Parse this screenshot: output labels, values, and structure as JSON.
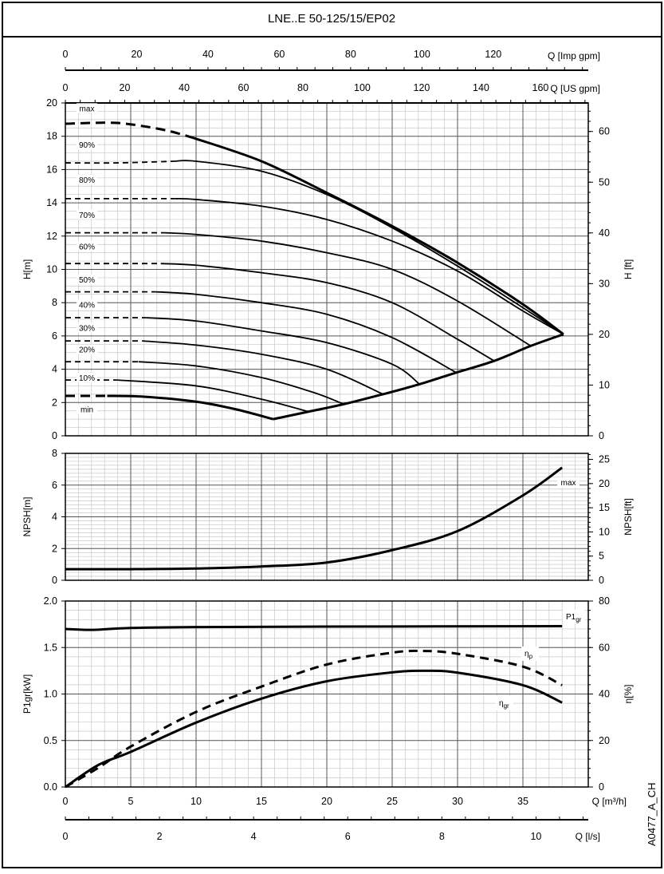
{
  "title": "LNE..E 50-125/15/EP02",
  "code": "A0477_A_CH",
  "chart_data": {
    "type": "line",
    "x_axes": {
      "imp_gpm": {
        "label": "Q [Imp gpm]",
        "ticks": [
          "0",
          "20",
          "40",
          "60",
          "80",
          "100",
          "120"
        ]
      },
      "us_gpm": {
        "label": "Q [US gpm]",
        "ticks": [
          "0",
          "20",
          "40",
          "60",
          "80",
          "100",
          "120",
          "140",
          "160"
        ]
      },
      "m3h": {
        "label": "Q [m³/h]",
        "ticks": [
          "0",
          "5",
          "10",
          "15",
          "20",
          "25",
          "30",
          "35"
        ],
        "range": [
          0,
          40
        ]
      },
      "ls": {
        "label": "Q [l/s]",
        "ticks": [
          "0",
          "2",
          "4",
          "6",
          "8",
          "10"
        ]
      }
    },
    "head": {
      "ylabel": "H[m]",
      "ylabel_right": "H [ft]",
      "ylim": [
        0,
        20
      ],
      "yticks": [
        "0",
        "2",
        "4",
        "6",
        "8",
        "10",
        "12",
        "14",
        "16",
        "18",
        "20"
      ],
      "yticks_right": [
        "0",
        "10",
        "20",
        "30",
        "40",
        "50",
        "60"
      ],
      "curves": [
        {
          "name": "max",
          "dashed": [
            [
              0,
              18.75
            ],
            [
              2,
              18.8
            ],
            [
              4,
              18.8
            ],
            [
              6,
              18.6
            ],
            [
              8,
              18.3
            ],
            [
              9.8,
              17.9
            ]
          ],
          "solid": [
            [
              9.8,
              17.9
            ],
            [
              15,
              16.5
            ],
            [
              20,
              14.6
            ],
            [
              25,
              12.6
            ],
            [
              30,
              10.4
            ],
            [
              35,
              7.9
            ],
            [
              38.1,
              6.1
            ]
          ]
        },
        {
          "name": "90%",
          "dashed": [
            [
              0,
              16.4
            ],
            [
              4,
              16.4
            ],
            [
              8.4,
              16.5
            ]
          ],
          "solid": [
            [
              8.4,
              16.5
            ],
            [
              10,
              16.5
            ],
            [
              15,
              15.9
            ],
            [
              20,
              14.5
            ],
            [
              25,
              12.5
            ],
            [
              30,
              10.2
            ],
            [
              35,
              7.7
            ],
            [
              38.1,
              6.1
            ]
          ]
        },
        {
          "name": "80%",
          "dashed": [
            [
              0,
              14.25
            ],
            [
              8.4,
              14.25
            ]
          ],
          "solid": [
            [
              8.4,
              14.25
            ],
            [
              10,
              14.2
            ],
            [
              15,
              13.8
            ],
            [
              20,
              13.0
            ],
            [
              25,
              11.7
            ],
            [
              30,
              9.9
            ],
            [
              35,
              7.5
            ],
            [
              38.1,
              6.1
            ]
          ]
        },
        {
          "name": "70%",
          "dashed": [
            [
              0,
              12.2
            ],
            [
              7.6,
              12.2
            ]
          ],
          "solid": [
            [
              7.6,
              12.2
            ],
            [
              10,
              12.1
            ],
            [
              15,
              11.7
            ],
            [
              20,
              11.0
            ],
            [
              25,
              10.0
            ],
            [
              30,
              8.1
            ],
            [
              35.6,
              5.4
            ]
          ]
        },
        {
          "name": "60%",
          "dashed": [
            [
              0,
              10.35
            ],
            [
              7.3,
              10.35
            ]
          ],
          "solid": [
            [
              7.3,
              10.35
            ],
            [
              10,
              10.25
            ],
            [
              15,
              9.8
            ],
            [
              20,
              9.2
            ],
            [
              25,
              8.0
            ],
            [
              30,
              5.8
            ],
            [
              32.8,
              4.5
            ]
          ]
        },
        {
          "name": "50%",
          "dashed": [
            [
              0,
              8.65
            ],
            [
              6.9,
              8.65
            ]
          ],
          "solid": [
            [
              6.9,
              8.65
            ],
            [
              10,
              8.5
            ],
            [
              15,
              8.0
            ],
            [
              20,
              7.3
            ],
            [
              25,
              5.9
            ],
            [
              29.9,
              3.8
            ]
          ]
        },
        {
          "name": "40%",
          "dashed": [
            [
              0,
              7.1
            ],
            [
              6.2,
              7.1
            ]
          ],
          "solid": [
            [
              6.2,
              7.1
            ],
            [
              10,
              6.9
            ],
            [
              15,
              6.3
            ],
            [
              20,
              5.6
            ],
            [
              25,
              4.3
            ],
            [
              27.1,
              3.1
            ]
          ]
        },
        {
          "name": "30%",
          "dashed": [
            [
              0,
              5.7
            ],
            [
              5.9,
              5.7
            ]
          ],
          "solid": [
            [
              5.9,
              5.7
            ],
            [
              10,
              5.45
            ],
            [
              15,
              4.9
            ],
            [
              20,
              4.0
            ],
            [
              24.3,
              2.5
            ]
          ]
        },
        {
          "name": "20%",
          "dashed": [
            [
              0,
              4.45
            ],
            [
              5.6,
              4.45
            ]
          ],
          "solid": [
            [
              5.6,
              4.45
            ],
            [
              10,
              4.2
            ],
            [
              15,
              3.5
            ],
            [
              19,
              2.6
            ],
            [
              21.3,
              1.9
            ]
          ]
        },
        {
          "name": "10%",
          "dashed": [
            [
              0,
              3.35
            ],
            [
              4.0,
              3.35
            ]
          ],
          "solid": [
            [
              4,
              3.35
            ],
            [
              10,
              3.0
            ],
            [
              15,
              2.2
            ],
            [
              18.6,
              1.45
            ]
          ]
        },
        {
          "name": "min",
          "dashed": [
            [
              0,
              2.4
            ],
            [
              3.2,
              2.4
            ]
          ],
          "solid": [
            [
              3.2,
              2.4
            ],
            [
              6,
              2.35
            ],
            [
              10,
              2.05
            ],
            [
              13,
              1.6
            ],
            [
              15.9,
              1.0
            ]
          ]
        }
      ],
      "min_efficiency_boundary": [
        [
          15.9,
          1.0
        ],
        [
          18.6,
          1.45
        ],
        [
          21.3,
          1.9
        ],
        [
          24.3,
          2.5
        ],
        [
          27.1,
          3.1
        ],
        [
          29.9,
          3.8
        ],
        [
          32.8,
          4.5
        ],
        [
          35.6,
          5.4
        ],
        [
          38.1,
          6.1
        ]
      ]
    },
    "npsh": {
      "ylabel": "NPSH[m]",
      "ylabel_right": "NPSH[ft]",
      "ylim": [
        0,
        8
      ],
      "yticks": [
        "0",
        "2",
        "4",
        "6",
        "8"
      ],
      "yticks_right": [
        "0",
        "5",
        "10",
        "15",
        "20",
        "25"
      ],
      "series": [
        {
          "name": "max",
          "points": [
            [
              0,
              0.7
            ],
            [
              5,
              0.7
            ],
            [
              10,
              0.74
            ],
            [
              15,
              0.87
            ],
            [
              20,
              1.12
            ],
            [
              25,
              1.9
            ],
            [
              30,
              3.1
            ],
            [
              35,
              5.35
            ],
            [
              38,
              7.1
            ]
          ]
        }
      ]
    },
    "power": {
      "ylabel": "P1gr[kW]",
      "ylabel_right": "η[%]",
      "ylim": [
        0,
        2.0
      ],
      "ylim_right": [
        0,
        80
      ],
      "yticks": [
        "0.0",
        "0.5",
        "1.0",
        "1.5",
        "2.0"
      ],
      "yticks_right": [
        "0",
        "20",
        "40",
        "60",
        "80"
      ],
      "series": [
        {
          "name": "P1",
          "sub": "gr",
          "unit": "kW",
          "points": [
            [
              0,
              1.7
            ],
            [
              2,
              1.69
            ],
            [
              5,
              1.71
            ],
            [
              10,
              1.72
            ],
            [
              20,
              1.725
            ],
            [
              38,
              1.73
            ]
          ]
        },
        {
          "name": "η",
          "sub": "p",
          "unit": "%",
          "dashed": true,
          "points": [
            [
              0,
              0
            ],
            [
              2.5,
              8.2
            ],
            [
              5,
              17.4
            ],
            [
              10,
              32.3
            ],
            [
              15,
              43.2
            ],
            [
              20,
              52.7
            ],
            [
              25,
              57.8
            ],
            [
              27.5,
              58.5
            ],
            [
              30,
              57.3
            ],
            [
              35,
              51.8
            ],
            [
              38,
              43.8
            ]
          ]
        },
        {
          "name": "η",
          "sub": "gr",
          "unit": "%",
          "points": [
            [
              0,
              0
            ],
            [
              2.5,
              9.4
            ],
            [
              5,
              15.1
            ],
            [
              10,
              27.7
            ],
            [
              15,
              38
            ],
            [
              20,
              45.5
            ],
            [
              25,
              49.3
            ],
            [
              27.5,
              50
            ],
            [
              30,
              49.2
            ],
            [
              35,
              43.8
            ],
            [
              38,
              36.3
            ]
          ]
        }
      ]
    }
  }
}
